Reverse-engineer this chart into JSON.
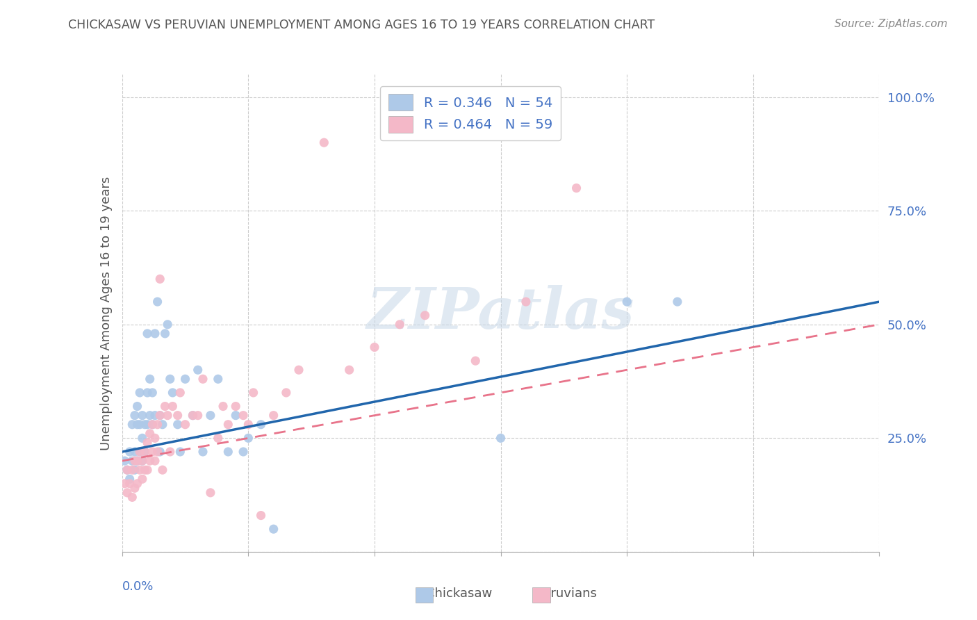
{
  "title": "CHICKASAW VS PERUVIAN UNEMPLOYMENT AMONG AGES 16 TO 19 YEARS CORRELATION CHART",
  "source": "Source: ZipAtlas.com",
  "ylabel": "Unemployment Among Ages 16 to 19 years",
  "xlim": [
    0.0,
    0.3
  ],
  "ylim": [
    0.0,
    1.05
  ],
  "yticks": [
    0.0,
    0.25,
    0.5,
    0.75,
    1.0
  ],
  "ytick_labels": [
    "",
    "25.0%",
    "50.0%",
    "75.0%",
    "100.0%"
  ],
  "chickasaw_color": "#aec9e8",
  "peruvian_color": "#f4b8c8",
  "chickasaw_line_color": "#2166ac",
  "peruvian_line_color": "#e8738a",
  "legend_r_chickasaw": "R = 0.346   N = 54",
  "legend_r_peruvian": "R = 0.464   N = 59",
  "watermark": "ZIPatlas",
  "title_color": "#555555",
  "label_color": "#555555",
  "tick_color": "#4472c4",
  "grid_color": "#cccccc",
  "chickasaw_x": [
    0.001,
    0.002,
    0.003,
    0.003,
    0.004,
    0.004,
    0.005,
    0.005,
    0.005,
    0.006,
    0.006,
    0.006,
    0.007,
    0.007,
    0.007,
    0.008,
    0.008,
    0.008,
    0.009,
    0.009,
    0.01,
    0.01,
    0.01,
    0.011,
    0.011,
    0.012,
    0.012,
    0.013,
    0.013,
    0.014,
    0.015,
    0.015,
    0.016,
    0.017,
    0.018,
    0.019,
    0.02,
    0.022,
    0.023,
    0.025,
    0.028,
    0.03,
    0.032,
    0.035,
    0.038,
    0.042,
    0.045,
    0.048,
    0.05,
    0.055,
    0.06,
    0.15,
    0.2,
    0.22
  ],
  "chickasaw_y": [
    0.2,
    0.18,
    0.16,
    0.22,
    0.2,
    0.28,
    0.18,
    0.22,
    0.3,
    0.2,
    0.28,
    0.32,
    0.22,
    0.28,
    0.35,
    0.2,
    0.25,
    0.3,
    0.22,
    0.28,
    0.28,
    0.35,
    0.48,
    0.3,
    0.38,
    0.28,
    0.35,
    0.3,
    0.48,
    0.55,
    0.22,
    0.3,
    0.28,
    0.48,
    0.5,
    0.38,
    0.35,
    0.28,
    0.22,
    0.38,
    0.3,
    0.4,
    0.22,
    0.3,
    0.38,
    0.22,
    0.3,
    0.22,
    0.25,
    0.28,
    0.05,
    0.25,
    0.55,
    0.55
  ],
  "peruvian_x": [
    0.001,
    0.002,
    0.002,
    0.003,
    0.004,
    0.004,
    0.005,
    0.005,
    0.006,
    0.006,
    0.007,
    0.007,
    0.008,
    0.008,
    0.009,
    0.009,
    0.01,
    0.01,
    0.011,
    0.011,
    0.012,
    0.012,
    0.013,
    0.013,
    0.014,
    0.014,
    0.015,
    0.015,
    0.016,
    0.017,
    0.018,
    0.019,
    0.02,
    0.022,
    0.023,
    0.025,
    0.028,
    0.03,
    0.032,
    0.035,
    0.038,
    0.04,
    0.042,
    0.045,
    0.048,
    0.05,
    0.052,
    0.055,
    0.06,
    0.065,
    0.07,
    0.08,
    0.09,
    0.1,
    0.11,
    0.12,
    0.14,
    0.16,
    0.18
  ],
  "peruvian_y": [
    0.15,
    0.13,
    0.18,
    0.15,
    0.12,
    0.18,
    0.14,
    0.2,
    0.15,
    0.2,
    0.18,
    0.22,
    0.16,
    0.2,
    0.18,
    0.22,
    0.18,
    0.24,
    0.2,
    0.26,
    0.22,
    0.28,
    0.2,
    0.25,
    0.22,
    0.28,
    0.6,
    0.3,
    0.18,
    0.32,
    0.3,
    0.22,
    0.32,
    0.3,
    0.35,
    0.28,
    0.3,
    0.3,
    0.38,
    0.13,
    0.25,
    0.32,
    0.28,
    0.32,
    0.3,
    0.28,
    0.35,
    0.08,
    0.3,
    0.35,
    0.4,
    0.9,
    0.4,
    0.45,
    0.5,
    0.52,
    0.42,
    0.55,
    0.8
  ],
  "chickasaw_line_x": [
    0.0,
    0.3
  ],
  "chickasaw_line_y": [
    0.22,
    0.55
  ],
  "peruvian_line_x": [
    0.0,
    0.3
  ],
  "peruvian_line_y": [
    0.2,
    0.5
  ]
}
